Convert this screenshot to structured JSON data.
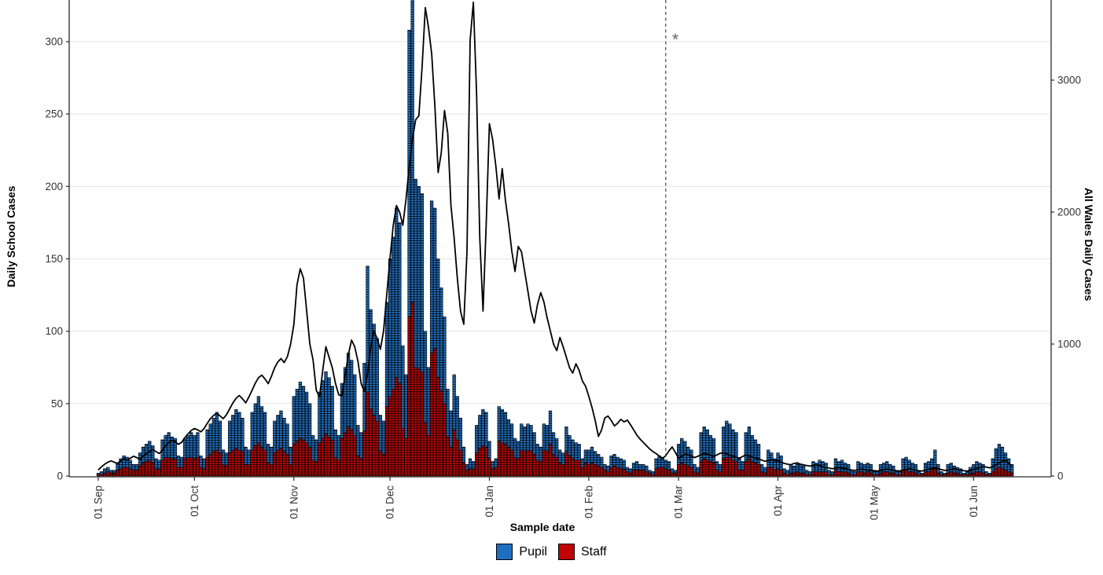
{
  "axes": {
    "left": {
      "title": "Daily School Cases",
      "ticks": [
        0,
        50,
        100,
        150,
        200,
        250,
        300
      ],
      "max_visible": 328
    },
    "right": {
      "title": "All Wales Daily Cases",
      "ticks": [
        0,
        1000,
        2000,
        3000
      ]
    },
    "x": {
      "title": "Sample date",
      "tick_labels": [
        "01 Sep",
        "01 Oct",
        "01 Nov",
        "01 Dec",
        "01 Jan",
        "01 Feb",
        "01 Mar",
        "01 Apr",
        "01 May",
        "01 Jun"
      ],
      "tick_day_offsets": [
        0,
        30,
        61,
        91,
        122,
        153,
        181,
        212,
        242,
        273
      ]
    }
  },
  "legend": {
    "pupil_label": "Pupil",
    "staff_label": "Staff"
  },
  "colors": {
    "pupil": "#1f6fc0",
    "staff": "#c00504",
    "line": "#000000",
    "grid": "#e5e5e5",
    "axis": "#2b2b2b",
    "annotation": "#666666"
  },
  "annotation": {
    "symbol": "*",
    "dashed_line_day_offset": 177,
    "note": "dashed vertical reference line just before 01 Mar"
  },
  "chart_data": {
    "type": "bar",
    "subtype": "stacked-bars-with-line-overlay",
    "x_start": "01 Sep",
    "x_end": "13 Jun",
    "x_resolution": "daily",
    "n_days": 286,
    "bar_axis": "left",
    "line_axis": "right",
    "title": "",
    "xlabel": "Sample date",
    "ylabel_left": "Daily School Cases",
    "ylabel_right": "All Wales Daily Cases",
    "ylim_left": [
      0,
      328
    ],
    "ylim_right": [
      0,
      3630
    ],
    "grid": "horizontal-only",
    "legend_position": "bottom-center",
    "series": [
      {
        "name": "Staff",
        "role": "bar-bottom",
        "axis": "left",
        "values": [
          1,
          1,
          2,
          3,
          2,
          2,
          4,
          5,
          6,
          6,
          5,
          4,
          4,
          7,
          9,
          10,
          11,
          9,
          5,
          5,
          11,
          13,
          13,
          12,
          12,
          6,
          6,
          12,
          13,
          13,
          12,
          13,
          6,
          5,
          13,
          15,
          17,
          18,
          16,
          8,
          7,
          16,
          18,
          19,
          18,
          17,
          8,
          8,
          18,
          21,
          23,
          20,
          18,
          9,
          8,
          16,
          18,
          19,
          17,
          15,
          8,
          22,
          24,
          26,
          25,
          23,
          20,
          11,
          10,
          23,
          26,
          29,
          27,
          25,
          13,
          11,
          26,
          30,
          34,
          32,
          28,
          14,
          12,
          31,
          58,
          46,
          42,
          38,
          17,
          15,
          48,
          55,
          60,
          68,
          64,
          33,
          26,
          110,
          120,
          75,
          74,
          72,
          37,
          28,
          85,
          88,
          68,
          59,
          50,
          27,
          20,
          32,
          25,
          18,
          9,
          4,
          5,
          5,
          16,
          19,
          21,
          20,
          12,
          5,
          6,
          24,
          23,
          22,
          20,
          18,
          13,
          12,
          18,
          17,
          18,
          17,
          15,
          11,
          10,
          18,
          17,
          22,
          15,
          13,
          9,
          8,
          17,
          14,
          12,
          11,
          11,
          6,
          9,
          8,
          9,
          8,
          7,
          6,
          4,
          3,
          6,
          7,
          6,
          5,
          5,
          3,
          2,
          4,
          4,
          4,
          4,
          3,
          2,
          1,
          5,
          6,
          6,
          5,
          4,
          2,
          2,
          8,
          9,
          8,
          7,
          6,
          3,
          2,
          10,
          12,
          11,
          10,
          9,
          4,
          3,
          12,
          13,
          13,
          11,
          10,
          4,
          4,
          10,
          12,
          10,
          9,
          8,
          3,
          2,
          6,
          6,
          4,
          5,
          4,
          2,
          1,
          2,
          2,
          3,
          2,
          2,
          1,
          1,
          3,
          3,
          3,
          3,
          3,
          1,
          1,
          4,
          3,
          3,
          3,
          2,
          1,
          1,
          3,
          3,
          2,
          3,
          2,
          1,
          1,
          2,
          3,
          3,
          2,
          2,
          1,
          1,
          4,
          4,
          3,
          3,
          2,
          1,
          1,
          3,
          3,
          4,
          5,
          2,
          1,
          1,
          2,
          3,
          2,
          2,
          1,
          1,
          1,
          2,
          2,
          3,
          3,
          2,
          1,
          1,
          3,
          5,
          6,
          5,
          4,
          3,
          2
        ]
      },
      {
        "name": "Pupil",
        "role": "bar-top",
        "axis": "left",
        "values": [
          1,
          2,
          3,
          3,
          2,
          2,
          5,
          7,
          8,
          7,
          6,
          4,
          4,
          9,
          11,
          12,
          13,
          12,
          7,
          6,
          14,
          15,
          17,
          15,
          14,
          8,
          7,
          14,
          15,
          17,
          16,
          17,
          8,
          7,
          19,
          21,
          23,
          26,
          22,
          10,
          9,
          22,
          24,
          27,
          26,
          23,
          12,
          10,
          26,
          29,
          32,
          28,
          26,
          13,
          12,
          22,
          24,
          26,
          23,
          21,
          12,
          33,
          36,
          39,
          37,
          35,
          30,
          17,
          15,
          35,
          40,
          43,
          41,
          37,
          19,
          17,
          38,
          45,
          51,
          48,
          42,
          21,
          18,
          47,
          87,
          69,
          63,
          57,
          25,
          23,
          72,
          95,
          105,
          117,
          111,
          57,
          44,
          198,
          215,
          130,
          126,
          123,
          63,
          47,
          105,
          97,
          82,
          71,
          60,
          33,
          25,
          38,
          30,
          22,
          11,
          4,
          7,
          5,
          19,
          23,
          25,
          24,
          12,
          5,
          6,
          24,
          23,
          22,
          19,
          18,
          13,
          12,
          18,
          17,
          18,
          18,
          15,
          11,
          10,
          18,
          18,
          23,
          15,
          13,
          9,
          8,
          17,
          14,
          13,
          12,
          11,
          6,
          9,
          10,
          11,
          9,
          8,
          7,
          4,
          4,
          8,
          8,
          7,
          7,
          6,
          3,
          3,
          5,
          6,
          4,
          4,
          4,
          2,
          2,
          7,
          8,
          7,
          6,
          6,
          3,
          2,
          14,
          17,
          16,
          13,
          12,
          5,
          4,
          20,
          22,
          21,
          18,
          17,
          6,
          5,
          22,
          25,
          23,
          21,
          20,
          8,
          6,
          20,
          22,
          18,
          16,
          14,
          5,
          4,
          12,
          10,
          8,
          11,
          10,
          3,
          3,
          6,
          5,
          6,
          6,
          5,
          3,
          2,
          7,
          6,
          8,
          7,
          6,
          3,
          2,
          8,
          7,
          8,
          6,
          6,
          3,
          2,
          7,
          6,
          6,
          6,
          6,
          3,
          2,
          6,
          6,
          7,
          6,
          5,
          2,
          2,
          8,
          9,
          8,
          6,
          6,
          2,
          1,
          6,
          7,
          8,
          13,
          6,
          2,
          1,
          6,
          6,
          5,
          4,
          4,
          1,
          2,
          4,
          6,
          7,
          6,
          6,
          2,
          1,
          9,
          14,
          16,
          15,
          12,
          9,
          6
        ]
      },
      {
        "name": "All Wales",
        "role": "line",
        "axis": "right",
        "values": [
          45,
          70,
          90,
          105,
          115,
          105,
          95,
          115,
          130,
          120,
          135,
          150,
          140,
          125,
          150,
          170,
          185,
          200,
          185,
          170,
          195,
          230,
          255,
          270,
          260,
          240,
          255,
          290,
          320,
          345,
          360,
          350,
          335,
          360,
          400,
          435,
          460,
          475,
          455,
          435,
          465,
          510,
          555,
          590,
          610,
          585,
          555,
          600,
          650,
          705,
          745,
          765,
          735,
          700,
          755,
          820,
          865,
          890,
          860,
          905,
          1000,
          1150,
          1450,
          1570,
          1500,
          1250,
          1000,
          880,
          650,
          600,
          800,
          980,
          900,
          820,
          700,
          615,
          610,
          760,
          920,
          1030,
          980,
          870,
          700,
          640,
          780,
          980,
          1100,
          1040,
          960,
          1100,
          1380,
          1650,
          1900,
          2050,
          2000,
          1900,
          2100,
          2350,
          2550,
          2700,
          2730,
          3100,
          3550,
          3400,
          3200,
          2800,
          2300,
          2450,
          2770,
          2600,
          2050,
          1800,
          1500,
          1250,
          1150,
          1700,
          3300,
          3590,
          2900,
          1800,
          1250,
          1900,
          2670,
          2550,
          2350,
          2100,
          2330,
          2090,
          1910,
          1700,
          1550,
          1740,
          1700,
          1550,
          1400,
          1250,
          1160,
          1300,
          1390,
          1320,
          1200,
          1100,
          1000,
          950,
          1050,
          980,
          900,
          820,
          780,
          850,
          800,
          720,
          680,
          605,
          520,
          420,
          300,
          350,
          440,
          455,
          420,
          380,
          400,
          430,
          410,
          424,
          390,
          350,
          310,
          280,
          255,
          230,
          205,
          185,
          170,
          150,
          133,
          155,
          190,
          220,
          180,
          135,
          150,
          165,
          160,
          150,
          140,
          150,
          160,
          170,
          165,
          158,
          150,
          160,
          172,
          176,
          168,
          158,
          150,
          142,
          135,
          148,
          160,
          152,
          144,
          136,
          128,
          120,
          112,
          118,
          124,
          116,
          115,
          105,
          95,
          90,
          85,
          95,
          100,
          90,
          85,
          80,
          75,
          80,
          85,
          80,
          70,
          65,
          60,
          55,
          60,
          65,
          60,
          55,
          50,
          45,
          42,
          48,
          52,
          48,
          45,
          42,
          40,
          38,
          42,
          48,
          52,
          48,
          45,
          40,
          38,
          45,
          50,
          55,
          50,
          45,
          40,
          38,
          45,
          52,
          58,
          62,
          55,
          48,
          42,
          45,
          50,
          55,
          50,
          45,
          40,
          38,
          42,
          50,
          58,
          65,
          72,
          68,
          62,
          70,
          85,
          100,
          112,
          118,
          95,
          75
        ]
      }
    ]
  }
}
